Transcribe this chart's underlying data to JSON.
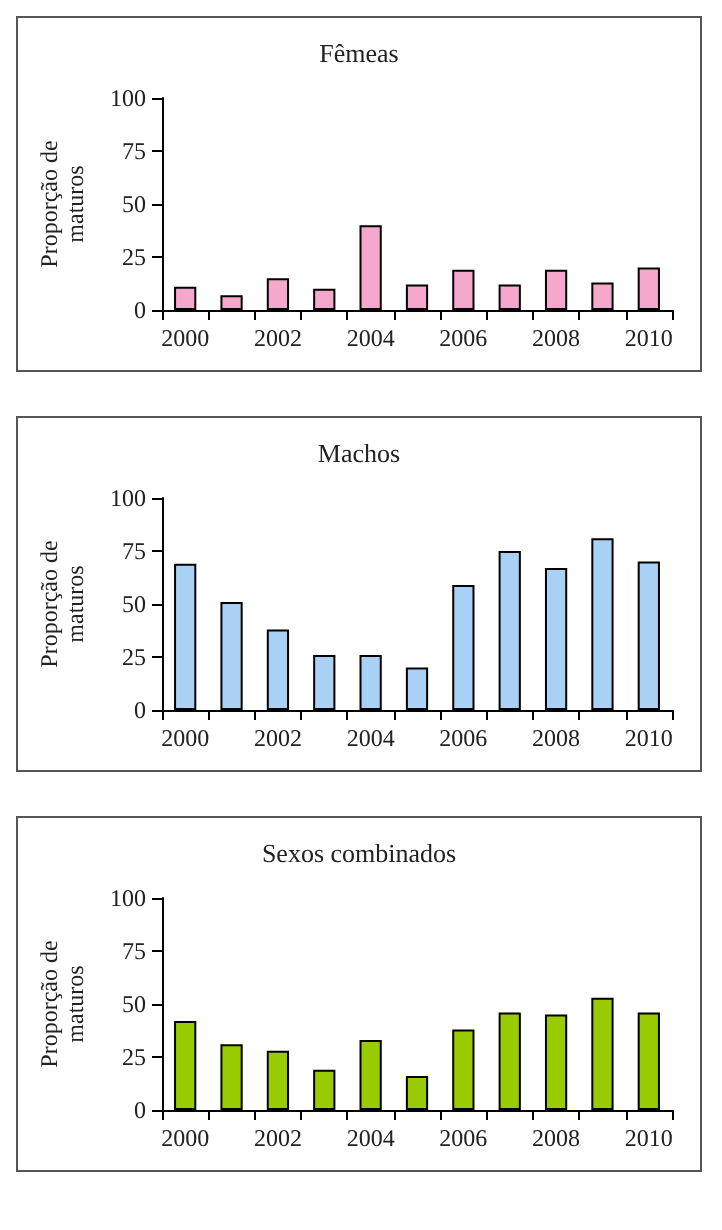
{
  "chart_data": [
    {
      "type": "bar",
      "title": "Fêmeas",
      "ylabel": "Proporção de\nmaturos",
      "categories": [
        "2000",
        null,
        "2002",
        null,
        "2004",
        null,
        "2006",
        null,
        "2008",
        null,
        "2010"
      ],
      "values": [
        11,
        7,
        15,
        10,
        40,
        12,
        19,
        12,
        19,
        13,
        20
      ],
      "color": "#f5a8cc",
      "ylim": [
        0,
        100
      ],
      "yticks": [
        0,
        25,
        50,
        75,
        100
      ]
    },
    {
      "type": "bar",
      "title": "Machos",
      "ylabel": "Proporção de\nmaturos",
      "categories": [
        "2000",
        null,
        "2002",
        null,
        "2004",
        null,
        "2006",
        null,
        "2008",
        null,
        "2010"
      ],
      "values": [
        69,
        51,
        38,
        26,
        26,
        20,
        59,
        75,
        67,
        81,
        70
      ],
      "color": "#a9d0f5",
      "ylim": [
        0,
        100
      ],
      "yticks": [
        0,
        25,
        50,
        75,
        100
      ]
    },
    {
      "type": "bar",
      "title": "Sexos combinados",
      "ylabel": "Proporção de\nmaturos",
      "categories": [
        "2000",
        null,
        "2002",
        null,
        "2004",
        null,
        "2006",
        null,
        "2008",
        null,
        "2010"
      ],
      "values": [
        42,
        31,
        28,
        19,
        33,
        16,
        38,
        46,
        45,
        53,
        46
      ],
      "color": "#99cc00",
      "ylim": [
        0,
        100
      ],
      "yticks": [
        0,
        25,
        50,
        75,
        100
      ]
    }
  ]
}
